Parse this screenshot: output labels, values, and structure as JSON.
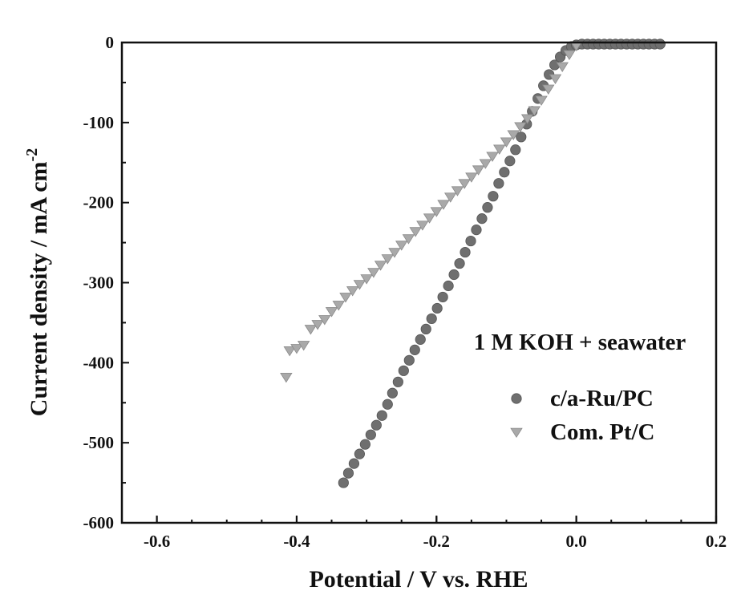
{
  "chart_data": {
    "type": "scatter",
    "xlabel": "Potential / V vs. RHE",
    "ylabel": "Current density / mA cm",
    "ylabel_superscript": "-2",
    "xlim": [
      -0.65,
      0.2
    ],
    "ylim": [
      -600,
      0
    ],
    "xticks": [
      -0.6,
      -0.4,
      -0.2,
      0.0,
      0.2
    ],
    "xtick_labels": [
      "-0.6",
      "-0.4",
      "-0.2",
      "0.0",
      "0.2"
    ],
    "yticks": [
      0,
      -100,
      -200,
      -300,
      -400,
      -500,
      -600
    ],
    "ytick_labels": [
      "0",
      "-100",
      "-200",
      "-300",
      "-400",
      "-500",
      "-600"
    ],
    "annotation": "1 M KOH + seawater",
    "legend_position": "lower-right",
    "grid": false,
    "series": [
      {
        "name": "c/a-Ru/PC",
        "marker": "circle",
        "color": "#6f6f6f",
        "x": [
          -0.333,
          -0.326,
          -0.318,
          -0.31,
          -0.302,
          -0.294,
          -0.286,
          -0.278,
          -0.27,
          -0.263,
          -0.255,
          -0.247,
          -0.239,
          -0.231,
          -0.223,
          -0.215,
          -0.207,
          -0.199,
          -0.191,
          -0.183,
          -0.175,
          -0.167,
          -0.159,
          -0.151,
          -0.143,
          -0.135,
          -0.127,
          -0.119,
          -0.111,
          -0.103,
          -0.095,
          -0.087,
          -0.079,
          -0.071,
          -0.063,
          -0.055,
          -0.047,
          -0.039,
          -0.031,
          -0.023,
          -0.015,
          -0.007,
          0.0,
          0.008,
          0.016,
          0.024,
          0.032,
          0.04,
          0.048,
          0.056,
          0.064,
          0.072,
          0.08,
          0.088,
          0.096,
          0.104,
          0.112,
          0.12
        ],
        "y": [
          -550,
          -538,
          -526,
          -514,
          -502,
          -490,
          -478,
          -466,
          -452,
          -438,
          -424,
          -410,
          -397,
          -384,
          -371,
          -358,
          -345,
          -332,
          -318,
          -304,
          -290,
          -276,
          -262,
          -248,
          -234,
          -220,
          -206,
          -192,
          -176,
          -162,
          -148,
          -134,
          -118,
          -102,
          -86,
          -70,
          -54,
          -40,
          -28,
          -18,
          -10,
          -5,
          -3,
          -2,
          -2,
          -2,
          -2,
          -2,
          -2,
          -2,
          -2,
          -2,
          -2,
          -2,
          -2,
          -2,
          -2,
          -2
        ]
      },
      {
        "name": "Com. Pt/C",
        "marker": "triangle-down",
        "color": "#a9a9a9",
        "x": [
          -0.415,
          -0.41,
          -0.4,
          -0.39,
          -0.38,
          -0.37,
          -0.36,
          -0.35,
          -0.34,
          -0.33,
          -0.32,
          -0.31,
          -0.3,
          -0.29,
          -0.28,
          -0.27,
          -0.26,
          -0.25,
          -0.24,
          -0.23,
          -0.22,
          -0.21,
          -0.2,
          -0.19,
          -0.18,
          -0.17,
          -0.16,
          -0.15,
          -0.14,
          -0.13,
          -0.12,
          -0.11,
          -0.1,
          -0.09,
          -0.08,
          -0.07,
          -0.06,
          -0.05,
          -0.04,
          -0.03,
          -0.02,
          -0.01,
          0.0
        ],
        "y": [
          -418,
          -385,
          -382,
          -378,
          -358,
          -352,
          -346,
          -336,
          -328,
          -318,
          -310,
          -302,
          -295,
          -287,
          -278,
          -270,
          -262,
          -253,
          -245,
          -236,
          -228,
          -219,
          -211,
          -202,
          -193,
          -185,
          -176,
          -168,
          -159,
          -151,
          -142,
          -133,
          -124,
          -115,
          -105,
          -95,
          -85,
          -72,
          -58,
          -45,
          -30,
          -15,
          -4
        ]
      }
    ]
  }
}
